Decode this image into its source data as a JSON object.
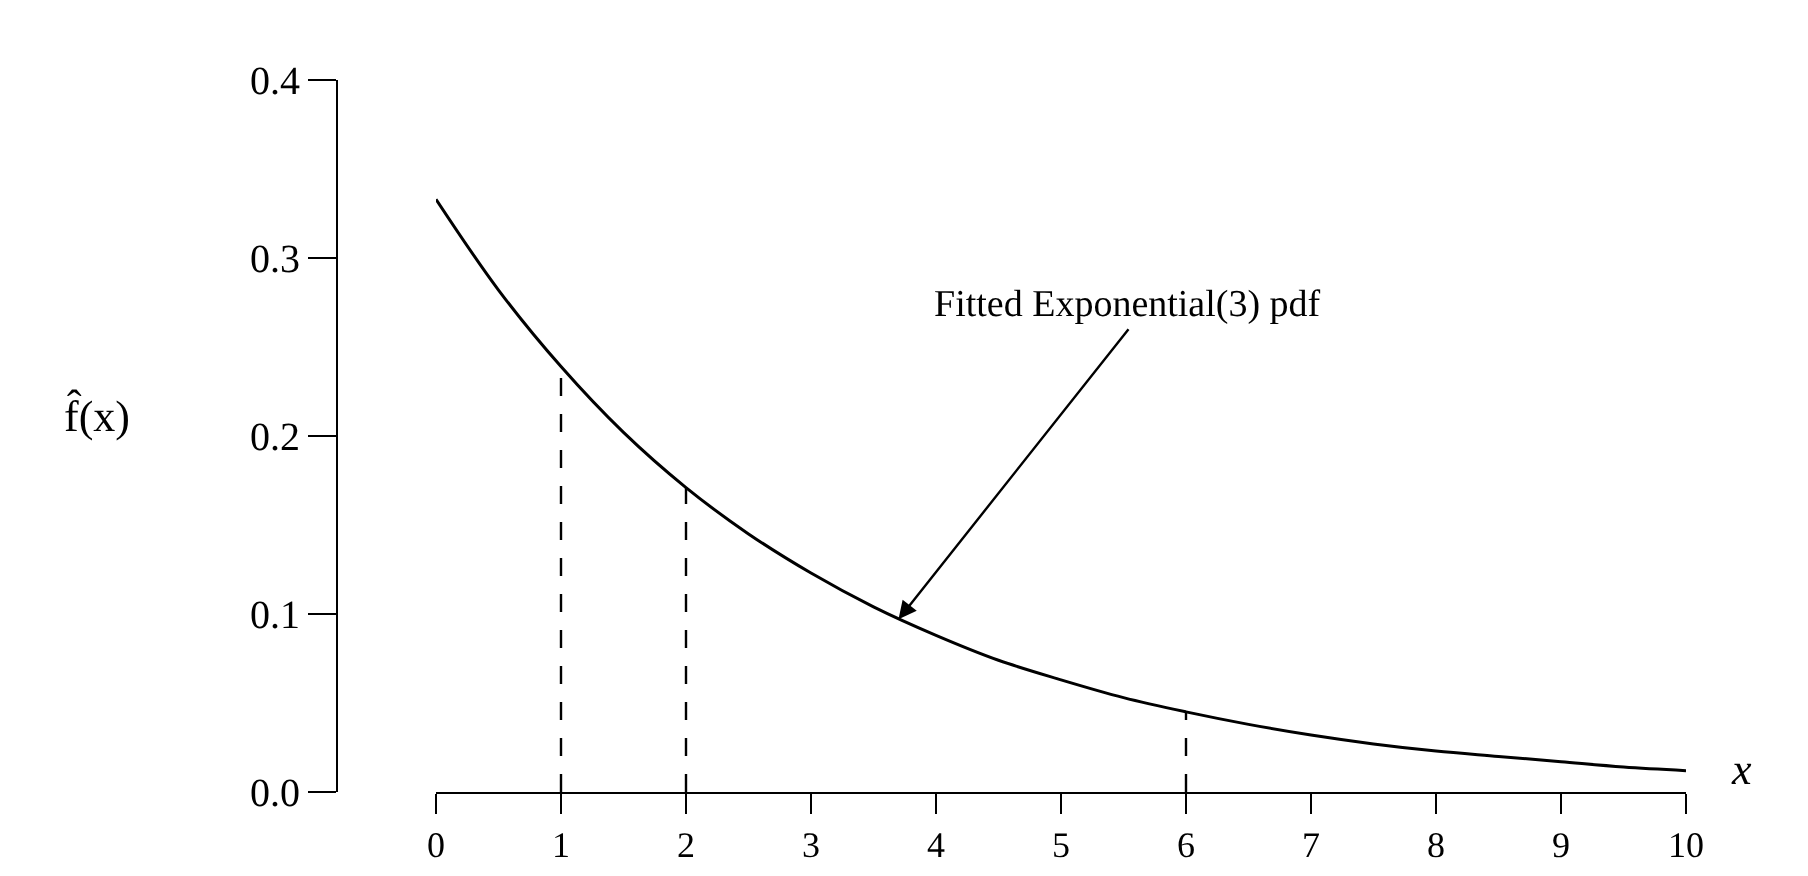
{
  "chart_data": {
    "type": "line",
    "xlabel": "x",
    "ylabel": "f̂(x)",
    "x": [
      0,
      0.5,
      1,
      1.5,
      2,
      2.5,
      3,
      3.5,
      4,
      4.5,
      5,
      5.5,
      6,
      6.5,
      7,
      7.5,
      8,
      8.5,
      9,
      9.5,
      10
    ],
    "series": [
      {
        "color": "#000000",
        "values": [
          0.333,
          0.282,
          0.239,
          0.202,
          0.171,
          0.145,
          0.123,
          0.104,
          0.088,
          0.074,
          0.063,
          0.053,
          0.045,
          0.038,
          0.032,
          0.027,
          0.023,
          0.02,
          0.017,
          0.014,
          0.012
        ]
      }
    ],
    "xlim": [
      0,
      10
    ],
    "xticks": [
      0,
      1,
      2,
      3,
      4,
      5,
      6,
      7,
      8,
      9,
      10
    ],
    "ylim": [
      0,
      0.4
    ],
    "yticks": [
      {
        "value": 0,
        "label": "0.0"
      },
      {
        "value": 0.1,
        "label": "0.1"
      },
      {
        "value": 0.2,
        "label": "0.2"
      },
      {
        "value": 0.3,
        "label": "0.3"
      },
      {
        "value": 0.4,
        "label": "0.4"
      }
    ],
    "ref_lines": [
      {
        "axis": "x",
        "value": 1,
        "line_style": "dashed",
        "color": "#000000"
      },
      {
        "axis": "x",
        "value": 2,
        "line_style": "dashed",
        "color": "#000000"
      },
      {
        "axis": "x",
        "value": 6,
        "line_style": "dashed",
        "color": "#000000"
      }
    ],
    "annotations": [
      {
        "text": "Fitted Exponential(3) pdf",
        "x": 3.7,
        "y": 0.097
      }
    ],
    "marker": "none",
    "line_style": "solid"
  }
}
